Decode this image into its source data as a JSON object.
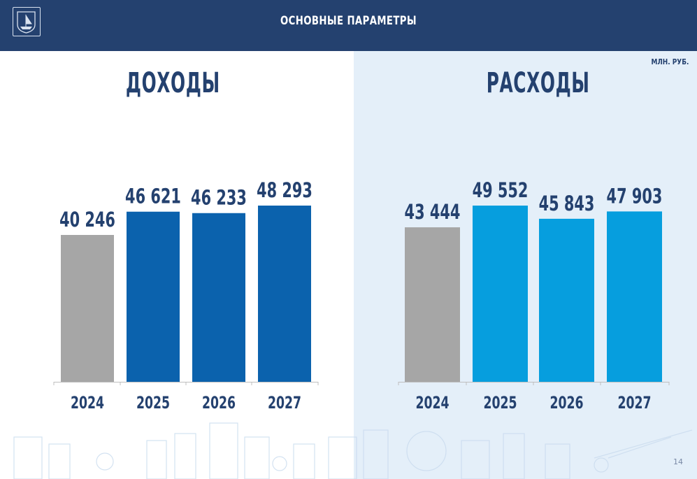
{
  "header": {
    "title": "ОСНОВНЫЕ ПАРАМЕТРЫ",
    "logo_icon": "city-emblem-icon"
  },
  "unit_label": "МЛН. РУБ.",
  "page_number": "14",
  "colors": {
    "header_bg": "#24416f",
    "text_dark": "#24416f",
    "bar_2024": "#a6a6a6",
    "income_bar": "#0b62ad",
    "expense_bar": "#069ede"
  },
  "chart_data": [
    {
      "type": "bar",
      "title": "ДОХОДЫ",
      "categories": [
        "2024",
        "2025",
        "2026",
        "2027"
      ],
      "values": [
        40246,
        46621,
        46233,
        48293
      ],
      "value_labels": [
        "40 246",
        "46 621",
        "46 233",
        "48 293"
      ],
      "ylim": [
        0,
        48293
      ],
      "grid": false,
      "bar_colors": [
        "#a6a6a6",
        "#0b62ad",
        "#0b62ad",
        "#0b62ad"
      ]
    },
    {
      "type": "bar",
      "title": "РАСХОДЫ",
      "categories": [
        "2024",
        "2025",
        "2026",
        "2027"
      ],
      "values": [
        43444,
        49552,
        45843,
        47903
      ],
      "value_labels": [
        "43 444",
        "49 552",
        "45 843",
        "47 903"
      ],
      "ylim": [
        0,
        49552
      ],
      "grid": false,
      "bar_colors": [
        "#a6a6a6",
        "#069ede",
        "#069ede",
        "#069ede"
      ]
    }
  ]
}
